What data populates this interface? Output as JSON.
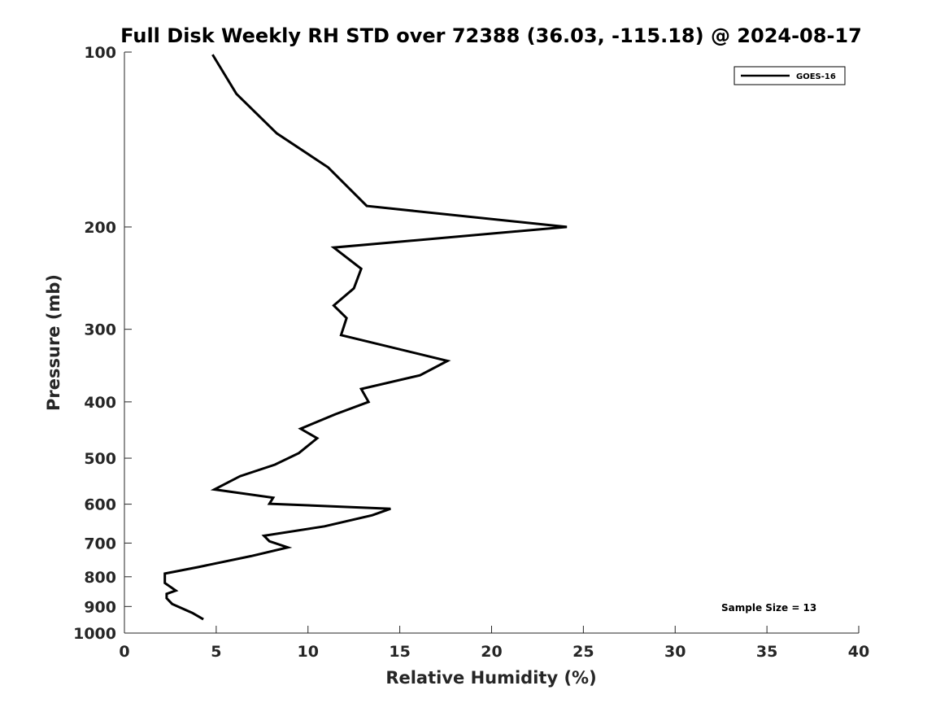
{
  "chart_data": {
    "type": "line",
    "title": "Full Disk Weekly RH STD over 72388 (36.03, -115.18) @ 2024-08-17",
    "xlabel": "Relative Humidity (%)",
    "ylabel": "Pressure (mb)",
    "xlim": [
      0,
      40
    ],
    "ylim": [
      1000,
      100
    ],
    "yscale": "log",
    "y_reversed": true,
    "grid": false,
    "legend_position": "top-right",
    "x_ticks": [
      "0",
      "5",
      "10",
      "15",
      "20",
      "25",
      "30",
      "35",
      "40"
    ],
    "y_ticks": [
      "100",
      "200",
      "300",
      "400",
      "500",
      "600",
      "700",
      "800",
      "900",
      "1000"
    ],
    "series": [
      {
        "name": "GOES-16",
        "color": "#000000",
        "points": [
          [
            4.8,
            101
          ],
          [
            6.1,
            118
          ],
          [
            8.3,
            138
          ],
          [
            11.1,
            158
          ],
          [
            13.2,
            184
          ],
          [
            24.1,
            200
          ],
          [
            11.4,
            217
          ],
          [
            12.9,
            236
          ],
          [
            12.5,
            255
          ],
          [
            11.4,
            273
          ],
          [
            12.1,
            287
          ],
          [
            11.8,
            307
          ],
          [
            17.6,
            340
          ],
          [
            16.1,
            360
          ],
          [
            12.9,
            380
          ],
          [
            13.3,
            400
          ],
          [
            11.5,
            420
          ],
          [
            9.6,
            445
          ],
          [
            10.5,
            462
          ],
          [
            9.5,
            490
          ],
          [
            8.2,
            513
          ],
          [
            6.3,
            537
          ],
          [
            4.9,
            566
          ],
          [
            8.1,
            585
          ],
          [
            7.9,
            599
          ],
          [
            14.5,
            611
          ],
          [
            13.5,
            627
          ],
          [
            10.9,
            655
          ],
          [
            7.6,
            680
          ],
          [
            7.9,
            695
          ],
          [
            8.9,
            712
          ],
          [
            6.9,
            737
          ],
          [
            4.0,
            770
          ],
          [
            2.2,
            790
          ],
          [
            2.2,
            820
          ],
          [
            2.8,
            845
          ],
          [
            2.3,
            856
          ],
          [
            2.3,
            871
          ],
          [
            2.6,
            891
          ],
          [
            3.7,
            923
          ],
          [
            4.3,
            947
          ]
        ]
      }
    ],
    "annotations": [
      "Sample Size = 13"
    ]
  }
}
